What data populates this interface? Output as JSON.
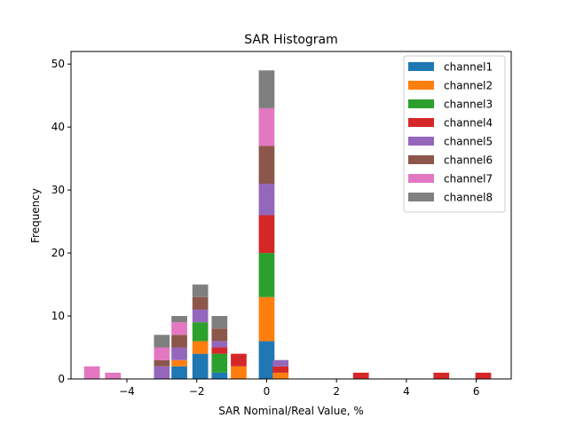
{
  "chart_data": {
    "type": "bar",
    "stacked": true,
    "title": "SAR Histogram",
    "xlabel": "SAR Nominal/Real Value, %",
    "ylabel": "Frequency",
    "xlim": [
      -5.6,
      7.0
    ],
    "ylim": [
      0,
      52
    ],
    "xticks": [
      -4,
      -2,
      0,
      2,
      4,
      6
    ],
    "xtick_labels": [
      "−4",
      "−2",
      "0",
      "2",
      "4",
      "6"
    ],
    "yticks": [
      0,
      10,
      20,
      30,
      40,
      50
    ],
    "legend_position": "top-right",
    "x": [
      -5.0,
      -4.4,
      -3.0,
      -2.5,
      -1.9,
      -1.35,
      -0.8,
      0.0,
      0.4,
      2.7,
      5.0,
      6.2
    ],
    "bar_width": 0.45,
    "series": [
      {
        "name": "channel1",
        "color": "#1f77b4",
        "values": [
          0,
          0,
          0,
          2,
          4,
          1,
          0,
          6,
          0,
          0,
          0,
          0
        ]
      },
      {
        "name": "channel2",
        "color": "#ff7f0e",
        "values": [
          0,
          0,
          0,
          1,
          2,
          0,
          2,
          7,
          1,
          0,
          0,
          0
        ]
      },
      {
        "name": "channel3",
        "color": "#2ca02c",
        "values": [
          0,
          0,
          0,
          0,
          3,
          3,
          0,
          7,
          0,
          0,
          0,
          0
        ]
      },
      {
        "name": "channel4",
        "color": "#d62728",
        "values": [
          0,
          0,
          0,
          0,
          0,
          1,
          2,
          6,
          1,
          1,
          1,
          1
        ]
      },
      {
        "name": "channel5",
        "color": "#9467bd",
        "values": [
          0,
          0,
          2,
          2,
          2,
          1,
          0,
          5,
          1,
          0,
          0,
          0
        ]
      },
      {
        "name": "channel6",
        "color": "#8c564b",
        "values": [
          0,
          0,
          1,
          2,
          2,
          2,
          0,
          6,
          0,
          0,
          0,
          0
        ]
      },
      {
        "name": "channel7",
        "color": "#e377c2",
        "values": [
          2,
          1,
          2,
          2,
          0,
          0,
          0,
          6,
          0,
          0,
          0,
          0
        ]
      },
      {
        "name": "channel8",
        "color": "#7f7f7f",
        "values": [
          0,
          0,
          2,
          1,
          2,
          2,
          0,
          6,
          0,
          0,
          0,
          0
        ]
      }
    ]
  }
}
